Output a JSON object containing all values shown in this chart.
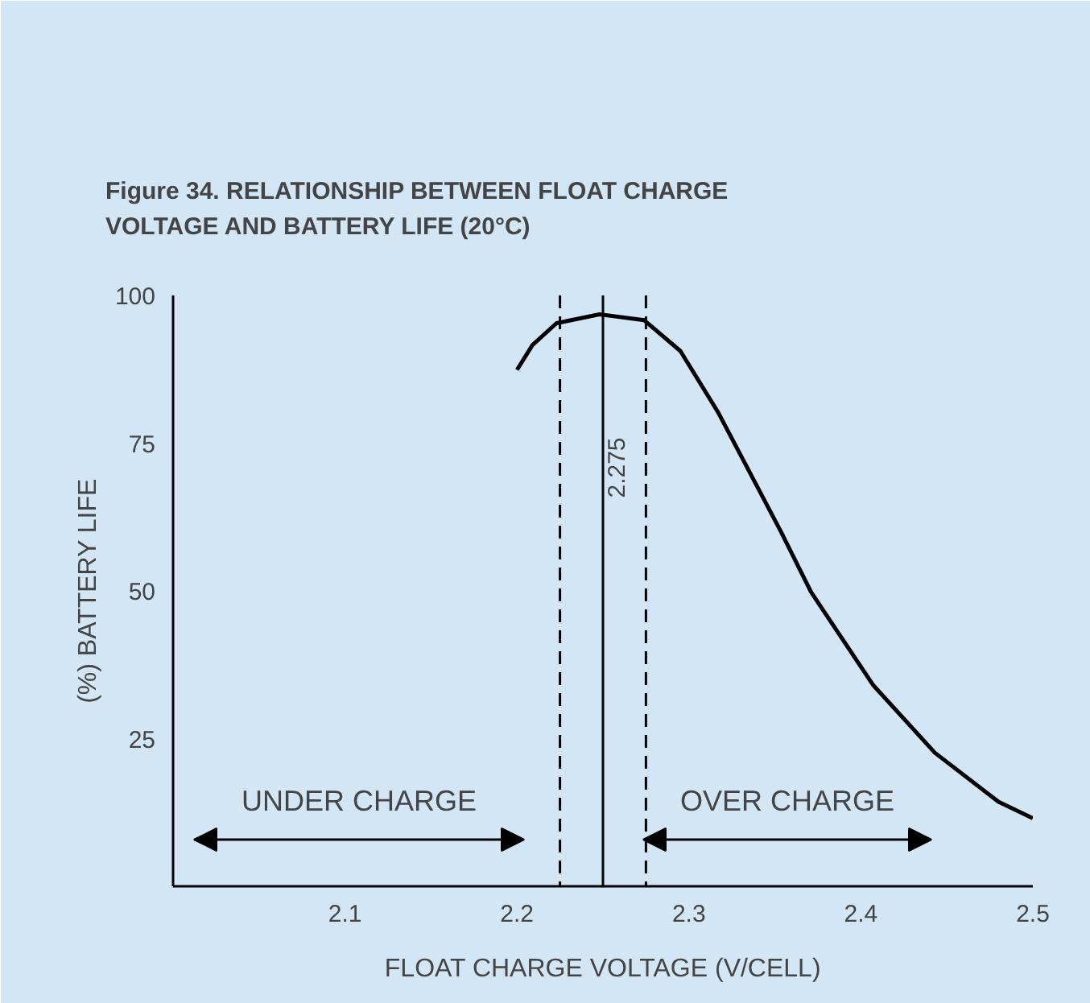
{
  "chart_data": {
    "type": "line",
    "title": "Figure 34.  RELATIONSHIP BETWEEN FLOAT CHARGE\nVOLTAGE AND BATTERY LIFE  (20°C)",
    "xlabel": "FLOAT CHARGE VOLTAGE (V/CELL)",
    "ylabel": "(%) BATTERY LIFE",
    "series": [
      {
        "color": "#000000",
        "x": [
          2.2,
          2.209,
          2.223,
          2.248,
          2.274,
          2.295,
          2.317,
          2.353,
          2.371,
          2.407,
          2.443,
          2.48,
          2.5
        ],
        "values": [
          87.4,
          91.6,
          95.3,
          96.8,
          95.8,
          90.6,
          80.2,
          60.3,
          49.8,
          34.1,
          22.6,
          14.3,
          11.5
        ]
      }
    ],
    "xlim": [
      2.0,
      2.5
    ],
    "xticks": [
      2.1,
      2.2,
      2.3,
      2.4,
      2.5
    ],
    "ylim": [
      0,
      100
    ],
    "yticks": [
      25,
      50,
      75,
      100
    ],
    "ref_lines": [
      {
        "axis": "x",
        "value": 2.225,
        "line_style": "dashed"
      },
      {
        "axis": "x",
        "value": 2.25,
        "line_style": "solid"
      },
      {
        "axis": "x",
        "value": 2.275,
        "line_style": "dashed"
      }
    ],
    "annotations": [
      "UNDER CHARGE",
      "OVER CHARGE",
      "2.275"
    ],
    "grid": false,
    "marker": "none",
    "line_style": "solid"
  }
}
